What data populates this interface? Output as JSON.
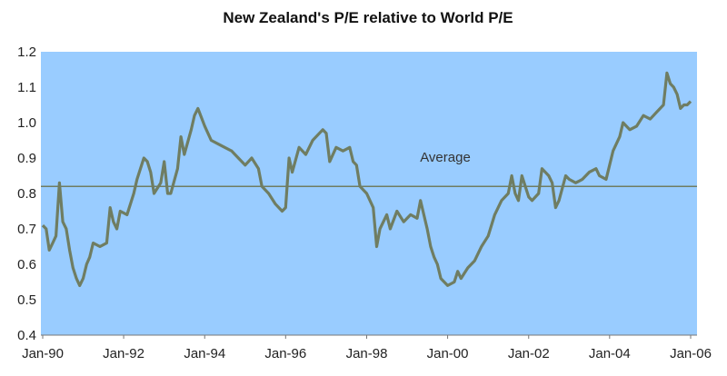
{
  "chart_data": {
    "type": "line",
    "title": "New Zealand's P/E relative to World P/E",
    "xlabel": "",
    "ylabel": "",
    "ylim": [
      0.4,
      1.2
    ],
    "y_ticks": [
      "0.4",
      "0.5",
      "0.6",
      "0.7",
      "0.8",
      "0.9",
      "1.0",
      "1.1",
      "1.2"
    ],
    "x_tick_labels": [
      "Jan-90",
      "Jan-92",
      "Jan-94",
      "Jan-96",
      "Jan-98",
      "Jan-00",
      "Jan-02",
      "Jan-04",
      "Jan-06"
    ],
    "grid": false,
    "plot_background": "#99ccff",
    "series": [
      {
        "color": "#6f7d62",
        "points": [
          [
            "1990-01",
            0.71
          ],
          [
            "1990-02",
            0.7
          ],
          [
            "1990-03",
            0.64
          ],
          [
            "1990-04",
            0.66
          ],
          [
            "1990-05",
            0.68
          ],
          [
            "1990-06",
            0.83
          ],
          [
            "1990-07",
            0.72
          ],
          [
            "1990-08",
            0.7
          ],
          [
            "1990-09",
            0.64
          ],
          [
            "1990-10",
            0.59
          ],
          [
            "1990-11",
            0.56
          ],
          [
            "1990-12",
            0.54
          ],
          [
            "1991-01",
            0.56
          ],
          [
            "1991-02",
            0.6
          ],
          [
            "1991-03",
            0.62
          ],
          [
            "1991-04",
            0.66
          ],
          [
            "1991-06",
            0.65
          ],
          [
            "1991-08",
            0.66
          ],
          [
            "1991-09",
            0.76
          ],
          [
            "1991-10",
            0.72
          ],
          [
            "1991-11",
            0.7
          ],
          [
            "1991-12",
            0.75
          ],
          [
            "1992-02",
            0.74
          ],
          [
            "1992-04",
            0.8
          ],
          [
            "1992-05",
            0.84
          ],
          [
            "1992-07",
            0.9
          ],
          [
            "1992-08",
            0.89
          ],
          [
            "1992-09",
            0.86
          ],
          [
            "1992-10",
            0.8
          ],
          [
            "1992-12",
            0.83
          ],
          [
            "1993-01",
            0.89
          ],
          [
            "1993-02",
            0.8
          ],
          [
            "1993-03",
            0.8
          ],
          [
            "1993-05",
            0.87
          ],
          [
            "1993-06",
            0.96
          ],
          [
            "1993-07",
            0.91
          ],
          [
            "1993-09",
            0.98
          ],
          [
            "1993-10",
            1.02
          ],
          [
            "1993-11",
            1.04
          ],
          [
            "1994-01",
            0.99
          ],
          [
            "1994-03",
            0.95
          ],
          [
            "1994-05",
            0.94
          ],
          [
            "1994-07",
            0.93
          ],
          [
            "1994-09",
            0.92
          ],
          [
            "1994-11",
            0.9
          ],
          [
            "1995-01",
            0.88
          ],
          [
            "1995-03",
            0.9
          ],
          [
            "1995-05",
            0.87
          ],
          [
            "1995-06",
            0.82
          ],
          [
            "1995-08",
            0.8
          ],
          [
            "1995-10",
            0.77
          ],
          [
            "1995-12",
            0.75
          ],
          [
            "1996-01",
            0.76
          ],
          [
            "1996-02",
            0.9
          ],
          [
            "1996-03",
            0.86
          ],
          [
            "1996-05",
            0.93
          ],
          [
            "1996-07",
            0.91
          ],
          [
            "1996-09",
            0.95
          ],
          [
            "1996-11",
            0.97
          ],
          [
            "1996-12",
            0.98
          ],
          [
            "1997-01",
            0.97
          ],
          [
            "1997-02",
            0.89
          ],
          [
            "1997-04",
            0.93
          ],
          [
            "1997-06",
            0.92
          ],
          [
            "1997-08",
            0.93
          ],
          [
            "1997-09",
            0.89
          ],
          [
            "1997-10",
            0.88
          ],
          [
            "1997-11",
            0.82
          ],
          [
            "1998-01",
            0.8
          ],
          [
            "1998-03",
            0.76
          ],
          [
            "1998-04",
            0.65
          ],
          [
            "1998-05",
            0.7
          ],
          [
            "1998-07",
            0.74
          ],
          [
            "1998-08",
            0.7
          ],
          [
            "1998-10",
            0.75
          ],
          [
            "1998-12",
            0.72
          ],
          [
            "1999-02",
            0.74
          ],
          [
            "1999-04",
            0.73
          ],
          [
            "1999-05",
            0.78
          ],
          [
            "1999-07",
            0.7
          ],
          [
            "1999-08",
            0.65
          ],
          [
            "1999-09",
            0.62
          ],
          [
            "1999-10",
            0.6
          ],
          [
            "1999-11",
            0.56
          ],
          [
            "2000-01",
            0.54
          ],
          [
            "2000-03",
            0.55
          ],
          [
            "2000-04",
            0.58
          ],
          [
            "2000-05",
            0.56
          ],
          [
            "2000-07",
            0.59
          ],
          [
            "2000-09",
            0.61
          ],
          [
            "2000-11",
            0.65
          ],
          [
            "2001-01",
            0.68
          ],
          [
            "2001-03",
            0.74
          ],
          [
            "2001-05",
            0.78
          ],
          [
            "2001-07",
            0.8
          ],
          [
            "2001-08",
            0.85
          ],
          [
            "2001-09",
            0.8
          ],
          [
            "2001-10",
            0.78
          ],
          [
            "2001-11",
            0.85
          ],
          [
            "2002-01",
            0.79
          ],
          [
            "2002-02",
            0.78
          ],
          [
            "2002-04",
            0.8
          ],
          [
            "2002-05",
            0.87
          ],
          [
            "2002-07",
            0.85
          ],
          [
            "2002-08",
            0.83
          ],
          [
            "2002-09",
            0.76
          ],
          [
            "2002-10",
            0.78
          ],
          [
            "2002-12",
            0.85
          ],
          [
            "2003-01",
            0.84
          ],
          [
            "2003-03",
            0.83
          ],
          [
            "2003-05",
            0.84
          ],
          [
            "2003-07",
            0.86
          ],
          [
            "2003-09",
            0.87
          ],
          [
            "2003-10",
            0.85
          ],
          [
            "2003-12",
            0.84
          ],
          [
            "2004-02",
            0.92
          ],
          [
            "2004-04",
            0.96
          ],
          [
            "2004-05",
            1.0
          ],
          [
            "2004-07",
            0.98
          ],
          [
            "2004-09",
            0.99
          ],
          [
            "2004-11",
            1.02
          ],
          [
            "2005-01",
            1.01
          ],
          [
            "2005-03",
            1.03
          ],
          [
            "2005-05",
            1.05
          ],
          [
            "2005-06",
            1.14
          ],
          [
            "2005-07",
            1.11
          ],
          [
            "2005-08",
            1.1
          ],
          [
            "2005-09",
            1.08
          ],
          [
            "2005-10",
            1.04
          ],
          [
            "2005-11",
            1.05
          ],
          [
            "2005-12",
            1.05
          ],
          [
            "2006-01",
            1.06
          ]
        ]
      },
      {
        "name": "Average",
        "color": "#6f7d62",
        "constant": 0.82
      }
    ],
    "annotations": [
      "Average"
    ]
  }
}
